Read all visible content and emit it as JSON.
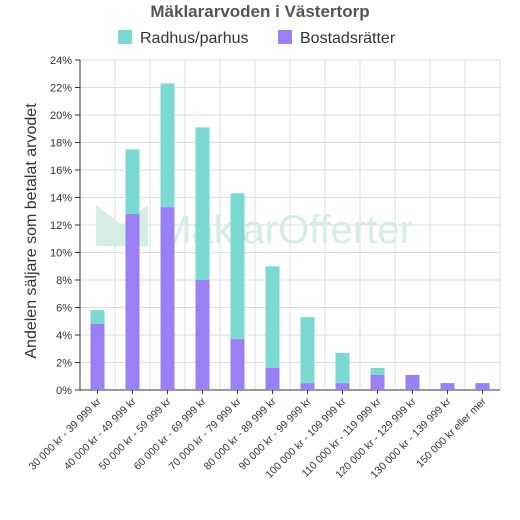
{
  "chart_data": {
    "type": "bar",
    "stacked": true,
    "title": "Mäklararvoden i Västertorp",
    "ylabel": "Andelen säljare som betalat arvodet",
    "xlabel": "",
    "ylim": [
      0,
      24
    ],
    "y_tick_values": [
      0,
      2,
      4,
      6,
      8,
      10,
      12,
      14,
      16,
      18,
      20,
      22,
      24
    ],
    "y_tick_suffix": "%",
    "grid": true,
    "legend_position": "top",
    "categories": [
      "30 000 kr - 39 999 kr",
      "40 000 kr - 49 999 kr",
      "50 000 kr - 59 999 kr",
      "60 000 kr - 69 999 kr",
      "70 000 kr - 79 999 kr",
      "80 000 kr - 89 999 kr",
      "90 000 kr - 99 999 kr",
      "100 000 kr - 109 999 kr",
      "110 000 kr - 119 999 kr",
      "120 000 kr - 129 999 kr",
      "130 000 kr - 139 999 kr",
      "150 000 kr eller mer"
    ],
    "series": [
      {
        "name": "Bostadsrätter",
        "color": "#9b7ff5",
        "values": [
          4.8,
          12.8,
          13.3,
          8.0,
          3.7,
          1.6,
          0.5,
          0.5,
          1.1,
          1.1,
          0.5,
          0.5
        ]
      },
      {
        "name": "Radhus/parhus",
        "color": "#7ad9d0",
        "values": [
          1.0,
          4.7,
          9.0,
          11.1,
          10.6,
          7.4,
          4.8,
          2.2,
          0.5,
          0,
          0,
          0
        ]
      }
    ],
    "legend_order": [
      "Radhus/parhus",
      "Bostadsrätter"
    ]
  },
  "watermark": "MäklarOfferter"
}
